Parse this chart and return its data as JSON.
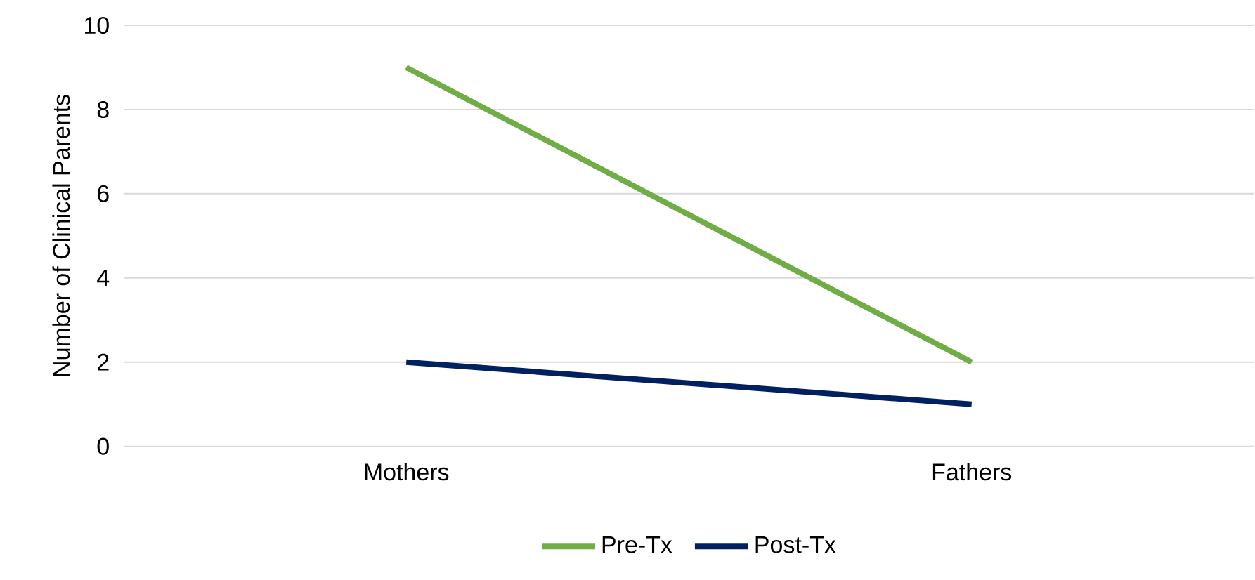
{
  "chart_data": {
    "type": "line",
    "ylabel": "Number of Clinical Parents",
    "categories": [
      "Mothers",
      "Fathers"
    ],
    "series": [
      {
        "name": "Pre-Tx",
        "color": "#70ad47",
        "values": [
          9,
          2
        ]
      },
      {
        "name": "Post-Tx",
        "color": "#002060",
        "values": [
          2,
          1
        ]
      }
    ],
    "ylim": [
      0,
      10
    ],
    "yticks": [
      0,
      2,
      4,
      6,
      8,
      10
    ],
    "grid": "y",
    "legend": "bottom"
  }
}
